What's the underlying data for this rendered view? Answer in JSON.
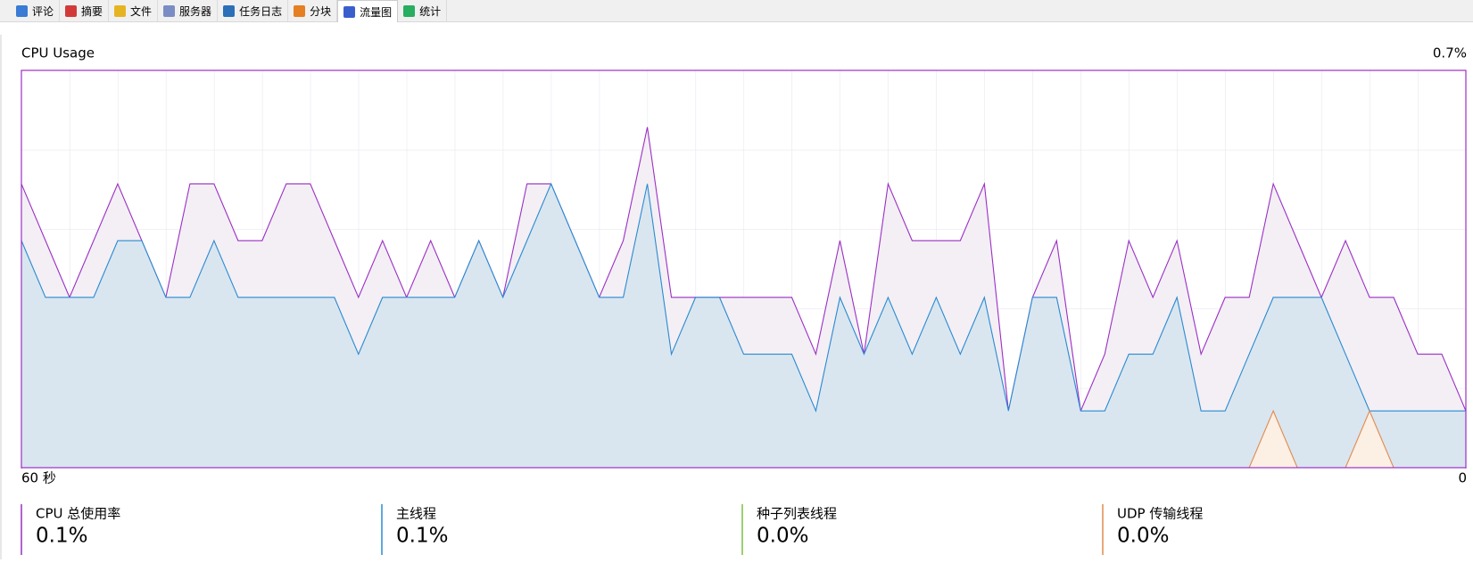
{
  "tabs": [
    "评论",
    "摘要",
    "文件",
    "服务器",
    "任务日志",
    "分块",
    "流量图",
    "统计"
  ],
  "selected_tab": 6,
  "chart_data": {
    "type": "area",
    "title": "CPU Usage",
    "xlim": [
      60,
      0
    ],
    "xticks": [
      {
        "value": 60,
        "label": "60 秒"
      },
      0
    ],
    "ylim": [
      0,
      0.7
    ],
    "yticks": [
      {
        "value": 0.7,
        "label": "0.7%"
      }
    ],
    "x": [
      60,
      59,
      58,
      57,
      56,
      55,
      54,
      53,
      52,
      51,
      50,
      49,
      48,
      47,
      46,
      45,
      44,
      43,
      42,
      41,
      40,
      39,
      38,
      37,
      36,
      35,
      34,
      33,
      32,
      31,
      30,
      29,
      28,
      27,
      26,
      25,
      24,
      23,
      22,
      21,
      20,
      19,
      18,
      17,
      16,
      15,
      14,
      13,
      12,
      11,
      10,
      9,
      8,
      7,
      6,
      5,
      4,
      3,
      2,
      1,
      0
    ],
    "series": [
      {
        "name": "CPU 总使用率",
        "color": "#9b2fc4",
        "fill": "#f3eff5",
        "current_label": "0.1%",
        "values": [
          0.5,
          0.4,
          0.3,
          0.4,
          0.5,
          0.4,
          0.3,
          0.5,
          0.5,
          0.4,
          0.4,
          0.5,
          0.5,
          0.4,
          0.3,
          0.4,
          0.3,
          0.4,
          0.3,
          0.4,
          0.3,
          0.5,
          0.5,
          0.4,
          0.3,
          0.4,
          0.6,
          0.3,
          0.3,
          0.3,
          0.3,
          0.3,
          0.3,
          0.2,
          0.4,
          0.2,
          0.5,
          0.4,
          0.4,
          0.4,
          0.5,
          0.1,
          0.3,
          0.4,
          0.1,
          0.2,
          0.4,
          0.3,
          0.4,
          0.2,
          0.3,
          0.3,
          0.5,
          0.4,
          0.3,
          0.4,
          0.3,
          0.3,
          0.2,
          0.2,
          0.1
        ]
      },
      {
        "name": "主线程",
        "color": "#2a8ad0",
        "fill": "#d9e6f0",
        "current_label": "0.1%",
        "values": [
          0.4,
          0.3,
          0.3,
          0.3,
          0.4,
          0.4,
          0.3,
          0.3,
          0.4,
          0.3,
          0.3,
          0.3,
          0.3,
          0.3,
          0.2,
          0.3,
          0.3,
          0.3,
          0.3,
          0.4,
          0.3,
          0.4,
          0.5,
          0.4,
          0.3,
          0.3,
          0.5,
          0.2,
          0.3,
          0.3,
          0.2,
          0.2,
          0.2,
          0.1,
          0.3,
          0.2,
          0.3,
          0.2,
          0.3,
          0.2,
          0.3,
          0.1,
          0.3,
          0.3,
          0.1,
          0.1,
          0.2,
          0.2,
          0.3,
          0.1,
          0.1,
          0.2,
          0.3,
          0.3,
          0.3,
          0.2,
          0.1,
          0.1,
          0.1,
          0.1,
          0.1
        ]
      },
      {
        "name": "种子列表线程",
        "color": "#7ac143",
        "fill": "#eef6e6",
        "current_label": "0.0%",
        "values": [
          0,
          0,
          0,
          0,
          0,
          0,
          0,
          0,
          0,
          0,
          0,
          0,
          0,
          0,
          0,
          0,
          0,
          0,
          0,
          0,
          0,
          0,
          0,
          0,
          0,
          0,
          0,
          0,
          0,
          0,
          0,
          0,
          0,
          0,
          0,
          0,
          0,
          0,
          0,
          0,
          0,
          0,
          0,
          0,
          0,
          0,
          0,
          0,
          0,
          0,
          0,
          0,
          0,
          0,
          0,
          0,
          0,
          0,
          0,
          0,
          0
        ]
      },
      {
        "name": "UDP 传输线程",
        "color": "#e08a50",
        "fill": "#fcefe3",
        "current_label": "0.0%",
        "values": [
          0,
          0,
          0,
          0,
          0,
          0,
          0,
          0,
          0,
          0,
          0,
          0,
          0,
          0,
          0,
          0,
          0,
          0,
          0,
          0,
          0,
          0,
          0,
          0,
          0,
          0,
          0,
          0,
          0,
          0,
          0,
          0,
          0,
          0,
          0,
          0,
          0,
          0,
          0,
          0,
          0,
          0,
          0,
          0,
          0,
          0,
          0,
          0,
          0,
          0,
          0,
          0,
          0.1,
          0,
          0,
          0,
          0.1,
          0,
          0,
          0,
          0
        ]
      }
    ]
  }
}
